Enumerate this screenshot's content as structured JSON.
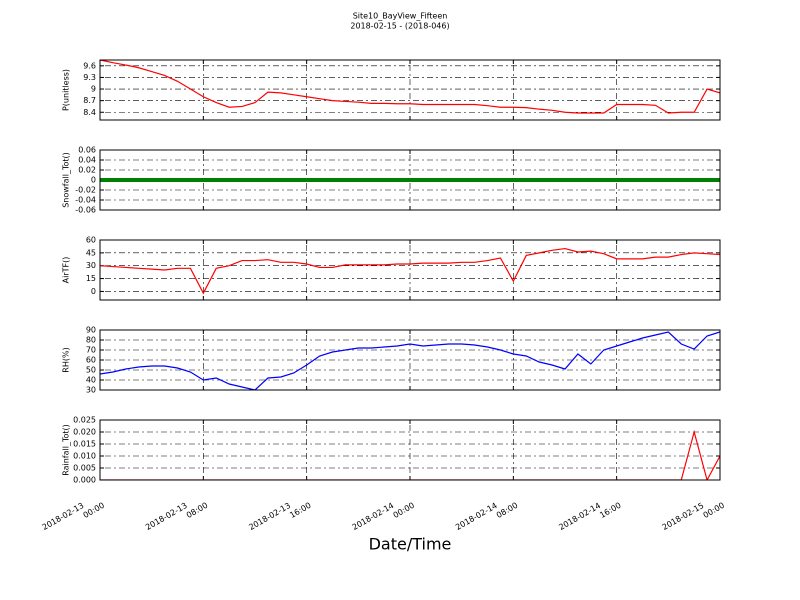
{
  "chart_data": {
    "type": "line",
    "title": "Site10_BayView_Fifteen",
    "subtitle": "2018-02-15 - (2018-046)",
    "xlabel": "Date/Time",
    "grid": true,
    "xlim": [
      "2018-02-13 00:00",
      "2018-02-15 00:00"
    ],
    "xticks": [
      {
        "value": "2018-02-13 00:00",
        "label": [
          "2018-02-13",
          "00:00"
        ]
      },
      {
        "value": "2018-02-13 08:00",
        "label": [
          "2018-02-13",
          "08:00"
        ]
      },
      {
        "value": "2018-02-13 16:00",
        "label": [
          "2018-02-13",
          "16:00"
        ]
      },
      {
        "value": "2018-02-14 00:00",
        "label": [
          "2018-02-14",
          "00:00"
        ]
      },
      {
        "value": "2018-02-14 08:00",
        "label": [
          "2018-02-14",
          "08:00"
        ]
      },
      {
        "value": "2018-02-14 16:00",
        "label": [
          "2018-02-14",
          "16:00"
        ]
      },
      {
        "value": "2018-02-15 00:00",
        "label": [
          "2018-02-15",
          "00:00"
        ]
      }
    ],
    "x": [
      "2018-02-13 00:00",
      "2018-02-13 01:00",
      "2018-02-13 02:00",
      "2018-02-13 03:00",
      "2018-02-13 04:00",
      "2018-02-13 05:00",
      "2018-02-13 06:00",
      "2018-02-13 07:00",
      "2018-02-13 08:00",
      "2018-02-13 09:00",
      "2018-02-13 10:00",
      "2018-02-13 11:00",
      "2018-02-13 12:00",
      "2018-02-13 13:00",
      "2018-02-13 14:00",
      "2018-02-13 15:00",
      "2018-02-13 16:00",
      "2018-02-13 17:00",
      "2018-02-13 18:00",
      "2018-02-13 19:00",
      "2018-02-13 20:00",
      "2018-02-13 21:00",
      "2018-02-13 22:00",
      "2018-02-13 23:00",
      "2018-02-14 00:00",
      "2018-02-14 01:00",
      "2018-02-14 02:00",
      "2018-02-14 03:00",
      "2018-02-14 04:00",
      "2018-02-14 05:00",
      "2018-02-14 06:00",
      "2018-02-14 07:00",
      "2018-02-14 08:00",
      "2018-02-14 09:00",
      "2018-02-14 10:00",
      "2018-02-14 11:00",
      "2018-02-14 12:00",
      "2018-02-14 13:00",
      "2018-02-14 14:00",
      "2018-02-14 15:00",
      "2018-02-14 16:00",
      "2018-02-14 17:00",
      "2018-02-14 18:00",
      "2018-02-14 19:00",
      "2018-02-14 20:00",
      "2018-02-14 21:00",
      "2018-02-14 22:00",
      "2018-02-14 23:00",
      "2018-02-15 00:00"
    ],
    "panels": [
      {
        "ylabel": "P(unitless)",
        "ylim": [
          8.2,
          9.75
        ],
        "yticks": [
          8.4,
          8.7,
          9.0,
          9.3,
          9.6
        ],
        "series": [
          {
            "color": "#ff0000",
            "values": [
              9.75,
              9.68,
              9.62,
              9.55,
              9.45,
              9.35,
              9.2,
              9.0,
              8.8,
              8.65,
              8.53,
              8.55,
              8.65,
              8.92,
              8.9,
              8.85,
              8.8,
              8.75,
              8.7,
              8.68,
              8.66,
              8.63,
              8.63,
              8.62,
              8.62,
              8.6,
              8.6,
              8.6,
              8.6,
              8.6,
              8.57,
              8.53,
              8.53,
              8.52,
              8.48,
              8.45,
              8.4,
              8.38,
              8.38,
              8.38,
              8.6,
              8.6,
              8.6,
              8.58,
              8.38,
              8.4,
              8.4,
              9.0,
              8.9
            ]
          }
        ]
      },
      {
        "ylabel": "Snowfall_Tot()",
        "ylim": [
          -0.06,
          0.06
        ],
        "yticks": [
          -0.06,
          -0.04,
          -0.02,
          0.0,
          0.02,
          0.04,
          0.06
        ],
        "series": [
          {
            "color": "#008000",
            "width": 4,
            "values": [
              0,
              0,
              0,
              0,
              0,
              0,
              0,
              0,
              0,
              0,
              0,
              0,
              0,
              0,
              0,
              0,
              0,
              0,
              0,
              0,
              0,
              0,
              0,
              0,
              0,
              0,
              0,
              0,
              0,
              0,
              0,
              0,
              0,
              0,
              0,
              0,
              0,
              0,
              0,
              0,
              0,
              0,
              0,
              0,
              0,
              0,
              0,
              0,
              0
            ]
          }
        ]
      },
      {
        "ylabel": "AirTF()",
        "ylim": [
          -10,
          60
        ],
        "yticks": [
          0,
          15,
          30,
          45,
          60
        ],
        "series": [
          {
            "color": "#ff0000",
            "values": [
              30,
              29,
              28,
              27,
              26,
              25,
              27,
              27,
              -2,
              27,
              30,
              36,
              36,
              37,
              34,
              34,
              32,
              28,
              28,
              31,
              31,
              31,
              31,
              32,
              32,
              33,
              33,
              33,
              34,
              34,
              36,
              39,
              12,
              42,
              45,
              48,
              50,
              46,
              47,
              44,
              38,
              38,
              38,
              40,
              40,
              43,
              45,
              44,
              43
            ]
          }
        ]
      },
      {
        "ylabel": "RH(%)",
        "ylim": [
          30,
          90
        ],
        "yticks": [
          30,
          40,
          50,
          60,
          70,
          80,
          90
        ],
        "series": [
          {
            "color": "#0000ff",
            "values": [
              46,
              48,
              51,
              53,
              54,
              54,
              52,
              48,
              40,
              42,
              36,
              33,
              30,
              42,
              43,
              47,
              55,
              64,
              68,
              70,
              72,
              72,
              73,
              74,
              76,
              74,
              75,
              76,
              76,
              75,
              73,
              70,
              66,
              64,
              58,
              55,
              51,
              66,
              56,
              70,
              74,
              78,
              82,
              85,
              88,
              76,
              71,
              84,
              88
            ]
          }
        ]
      },
      {
        "ylabel": "Rainfall_Tot()",
        "ylim": [
          0,
          0.025
        ],
        "yticks": [
          {
            "value": 0,
            "label": "0.000"
          },
          {
            "value": 0.005,
            "label": "0.005"
          },
          {
            "value": 0.01,
            "label": "0.010"
          },
          {
            "value": 0.015,
            "label": "0.015"
          },
          {
            "value": 0.02,
            "label": "0.020"
          },
          {
            "value": 0.025,
            "label": "0.025"
          }
        ],
        "series": [
          {
            "color": "#ff0000",
            "values": [
              0,
              0,
              0,
              0,
              0,
              0,
              0,
              0,
              0,
              0,
              0,
              0,
              0,
              0,
              0,
              0,
              0,
              0,
              0,
              0,
              0,
              0,
              0,
              0,
              0,
              0,
              0,
              0,
              0,
              0,
              0,
              0,
              0,
              0,
              0,
              0,
              0,
              0,
              0,
              0,
              0,
              0,
              0,
              0,
              0,
              0,
              0.02,
              0,
              0.01
            ]
          }
        ]
      }
    ]
  }
}
